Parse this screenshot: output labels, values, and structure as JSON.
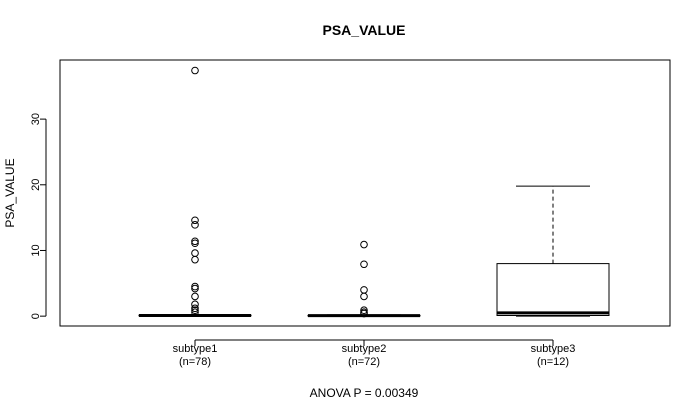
{
  "chart_data": {
    "type": "boxplot",
    "title": "PSA_VALUE",
    "ylabel": "PSA_VALUE",
    "xlabel": "ANOVA P = 0.00349",
    "ylim": [
      -1.5,
      39
    ],
    "yticks": [
      0,
      10,
      20,
      30
    ],
    "groups": [
      {
        "name": "subtype1",
        "n_label": "(n=78)",
        "min": 0.0,
        "q1": 0.05,
        "median": 0.1,
        "q3": 0.15,
        "max": 0.25,
        "outliers": [
          37.4,
          14.6,
          13.9,
          11.4,
          11.1,
          9.6,
          8.6,
          4.5,
          4.2,
          3.0,
          1.8,
          1.2,
          0.9,
          0.6
        ]
      },
      {
        "name": "subtype2",
        "n_label": "(n=72)",
        "min": 0.0,
        "q1": 0.03,
        "median": 0.08,
        "q3": 0.12,
        "max": 0.2,
        "outliers": [
          10.9,
          7.9,
          4.0,
          3.0,
          0.9,
          0.6,
          0.4
        ]
      },
      {
        "name": "subtype3",
        "n_label": "(n=12)",
        "min": 0.0,
        "q1": 0.1,
        "median": 0.5,
        "q3": 8.0,
        "max": 19.8,
        "outliers": []
      }
    ]
  }
}
